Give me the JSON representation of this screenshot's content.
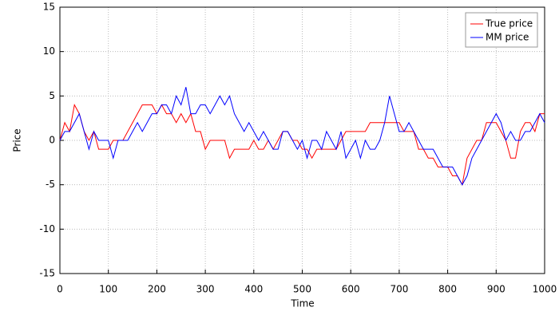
{
  "chart_data": {
    "type": "line",
    "xlabel": "Time",
    "ylabel": "Price",
    "x": [
      0,
      10,
      20,
      30,
      40,
      50,
      60,
      70,
      80,
      90,
      100,
      110,
      120,
      130,
      140,
      150,
      160,
      170,
      180,
      190,
      200,
      210,
      220,
      230,
      240,
      250,
      260,
      270,
      280,
      290,
      300,
      310,
      320,
      330,
      340,
      350,
      360,
      370,
      380,
      390,
      400,
      410,
      420,
      430,
      440,
      450,
      460,
      470,
      480,
      490,
      500,
      510,
      520,
      530,
      540,
      550,
      560,
      570,
      580,
      590,
      600,
      610,
      620,
      630,
      640,
      650,
      660,
      670,
      680,
      690,
      700,
      710,
      720,
      730,
      740,
      750,
      760,
      770,
      780,
      790,
      800,
      810,
      820,
      830,
      840,
      850,
      860,
      870,
      880,
      890,
      900,
      910,
      920,
      930,
      940,
      950,
      960,
      970,
      980,
      990,
      1000
    ],
    "series": [
      {
        "name": "True price",
        "color": "#ff0000",
        "values": [
          0,
          2,
          1,
          4,
          3,
          1,
          0,
          1,
          -1,
          -1,
          -1,
          0,
          0,
          0,
          1,
          2,
          3,
          4,
          4,
          4,
          3,
          4,
          3,
          3,
          2,
          3,
          2,
          3,
          1,
          1,
          -1,
          0,
          0,
          0,
          0,
          -2,
          -1,
          -1,
          -1,
          -1,
          0,
          -1,
          -1,
          0,
          -1,
          0,
          1,
          1,
          0,
          0,
          -1,
          -1,
          -2,
          -1,
          -1,
          -1,
          -1,
          -1,
          0,
          1,
          1,
          1,
          1,
          1,
          2,
          2,
          2,
          2,
          2,
          2,
          2,
          1,
          1,
          1,
          -1,
          -1,
          -2,
          -2,
          -3,
          -3,
          -3,
          -4,
          -4,
          -5,
          -2,
          -1,
          0,
          0,
          2,
          2,
          2,
          1,
          0,
          -2,
          -2,
          1,
          2,
          2,
          1,
          3,
          3
        ]
      },
      {
        "name": "MM price",
        "color": "#0000ff",
        "values": [
          0,
          1,
          1,
          2,
          3,
          1,
          -1,
          1,
          0,
          0,
          0,
          -2,
          0,
          0,
          0,
          1,
          2,
          1,
          2,
          3,
          3,
          4,
          4,
          3,
          5,
          4,
          6,
          3,
          3,
          4,
          4,
          3,
          4,
          5,
          4,
          5,
          3,
          2,
          1,
          2,
          1,
          0,
          1,
          0,
          -1,
          -1,
          1,
          1,
          0,
          -1,
          0,
          -2,
          0,
          0,
          -1,
          1,
          0,
          -1,
          1,
          -2,
          -1,
          0,
          -2,
          0,
          -1,
          -1,
          0,
          2,
          5,
          3,
          1,
          1,
          2,
          1,
          0,
          -1,
          -1,
          -1,
          -2,
          -3,
          -3,
          -3,
          -4,
          -5,
          -4,
          -2,
          -1,
          0,
          1,
          2,
          3,
          2,
          0,
          1,
          0,
          0,
          1,
          1,
          2,
          3,
          2
        ]
      }
    ],
    "xlim": [
      0,
      1000
    ],
    "ylim": [
      -15,
      15
    ],
    "xticks": [
      0,
      100,
      200,
      300,
      400,
      500,
      600,
      700,
      800,
      900,
      1000
    ],
    "yticks": [
      -15,
      -10,
      -5,
      0,
      5,
      10,
      15
    ],
    "grid": true,
    "legend": "upper right"
  }
}
